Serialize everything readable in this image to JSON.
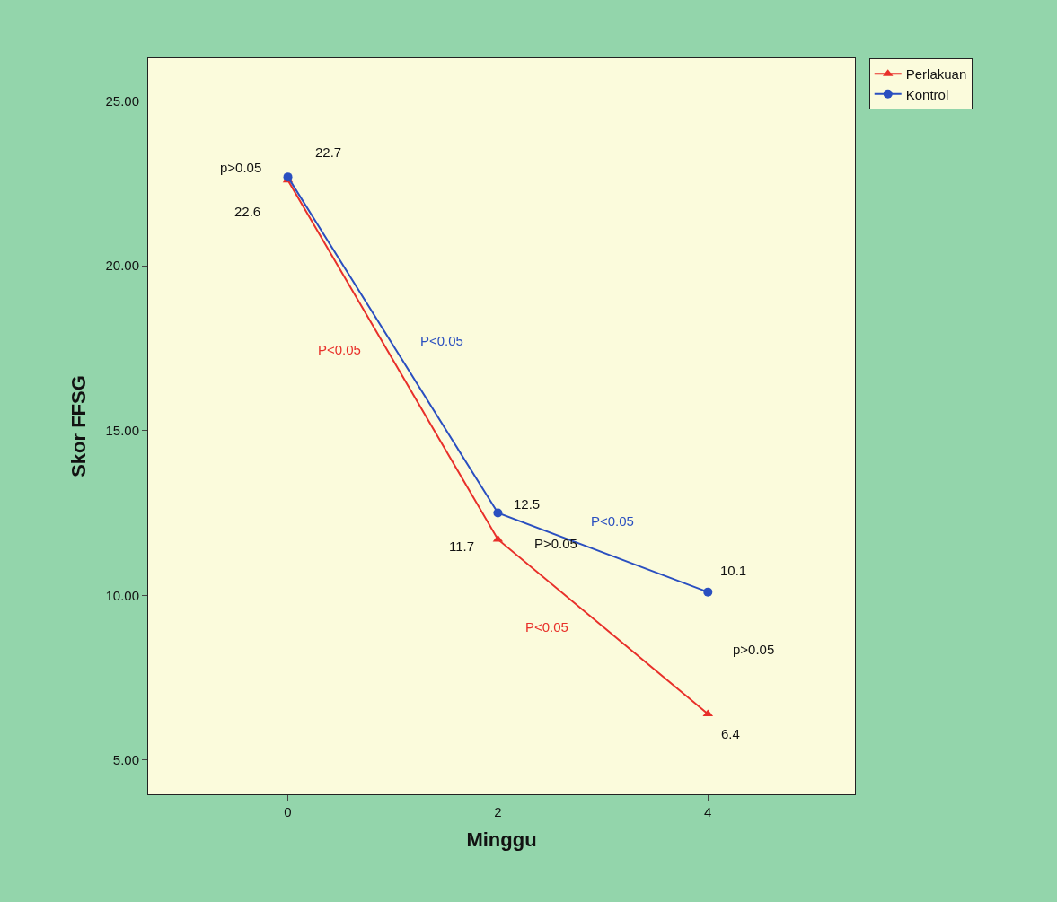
{
  "chart_data": {
    "type": "line",
    "xlabel": "Minggu",
    "ylabel": "Skor FFSG",
    "x": [
      0,
      2,
      4
    ],
    "series": [
      {
        "name": "Perlakuan",
        "color": "#e8302a",
        "values": [
          22.6,
          11.7,
          6.4
        ],
        "marker": "triangle",
        "value_labels": [
          "22.6",
          "11.7",
          "6.4"
        ]
      },
      {
        "name": "Kontrol",
        "color": "#2a4fc0",
        "values": [
          22.7,
          12.5,
          10.1
        ],
        "marker": "circle",
        "value_labels": [
          "22.7",
          "12.5",
          "10.1"
        ]
      }
    ],
    "xlim": [
      -1.33,
      5.4
    ],
    "xticks": [
      0,
      2,
      4
    ],
    "ylim": [
      3.96,
      26.3
    ],
    "yticks": [
      {
        "value": 5,
        "label": "5.00"
      },
      {
        "value": 10,
        "label": "10.00"
      },
      {
        "value": 15,
        "label": "15.00"
      },
      {
        "value": 20,
        "label": "20.00"
      },
      {
        "value": 25,
        "label": "25.00"
      }
    ],
    "annotations": [
      "p>0.05",
      "P<0.05",
      "P<0.05",
      "P>0.05",
      "P<0.05",
      "P<0.05",
      "p>0.05"
    ],
    "grid": false,
    "legend": "top right",
    "line_style": "solid"
  }
}
